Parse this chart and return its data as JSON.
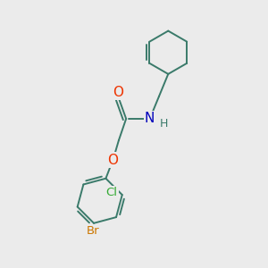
{
  "background_color": "#ebebeb",
  "bond_color": "#3a7a6a",
  "atom_colors": {
    "O": "#ee3300",
    "N": "#0000bb",
    "Cl": "#33aa33",
    "Br": "#cc7700",
    "H": "#3a7a6a",
    "C": "#3a7a6a"
  },
  "font_size": 10,
  "line_width": 1.4
}
